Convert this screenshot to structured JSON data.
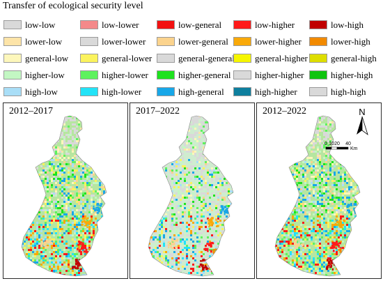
{
  "legend": {
    "title": "Transfer of ecological security level",
    "items": [
      {
        "label": "low-low",
        "color": "#d9d9d9"
      },
      {
        "label": "low-lower",
        "color": "#f4898a"
      },
      {
        "label": "low-general",
        "color": "#f21111"
      },
      {
        "label": "low-higher",
        "color": "#ff1a1a"
      },
      {
        "label": "low-high",
        "color": "#c00000"
      },
      {
        "label": "lower-low",
        "color": "#fde4a8"
      },
      {
        "label": "lower-lower",
        "color": "#d9d9d9"
      },
      {
        "label": "lower-general",
        "color": "#fbd38d"
      },
      {
        "label": "lower-higher",
        "color": "#f9a909"
      },
      {
        "label": "lower-high",
        "color": "#f28a00"
      },
      {
        "label": "general-low",
        "color": "#fdf7bb"
      },
      {
        "label": "general-lower",
        "color": "#fbf35d"
      },
      {
        "label": "general-general",
        "color": "#d9d9d9"
      },
      {
        "label": "general-higher",
        "color": "#f6f600"
      },
      {
        "label": "general-high",
        "color": "#dede00"
      },
      {
        "label": "higher-low",
        "color": "#c3f7c3"
      },
      {
        "label": "higher-lower",
        "color": "#5ef25e"
      },
      {
        "label": "higher-general",
        "color": "#1ee21e"
      },
      {
        "label": "higher-higher",
        "color": "#d9d9d9"
      },
      {
        "label": "higher-high",
        "color": "#10c410"
      },
      {
        "label": "high-low",
        "color": "#a9def7"
      },
      {
        "label": "high-lower",
        "color": "#23e3f7"
      },
      {
        "label": "high-general",
        "color": "#18a7e8"
      },
      {
        "label": "high-higher",
        "color": "#0e7f9e"
      },
      {
        "label": "high-high",
        "color": "#d9d9d9"
      }
    ]
  },
  "panels": [
    {
      "title": "2012–2017"
    },
    {
      "title": "2017–2022"
    },
    {
      "title": "2012–2022"
    }
  ],
  "north_arrow": {
    "label": "N"
  },
  "scale_bar": {
    "ticks": [
      "0",
      "10",
      "20",
      "40"
    ],
    "unit": "Km"
  }
}
